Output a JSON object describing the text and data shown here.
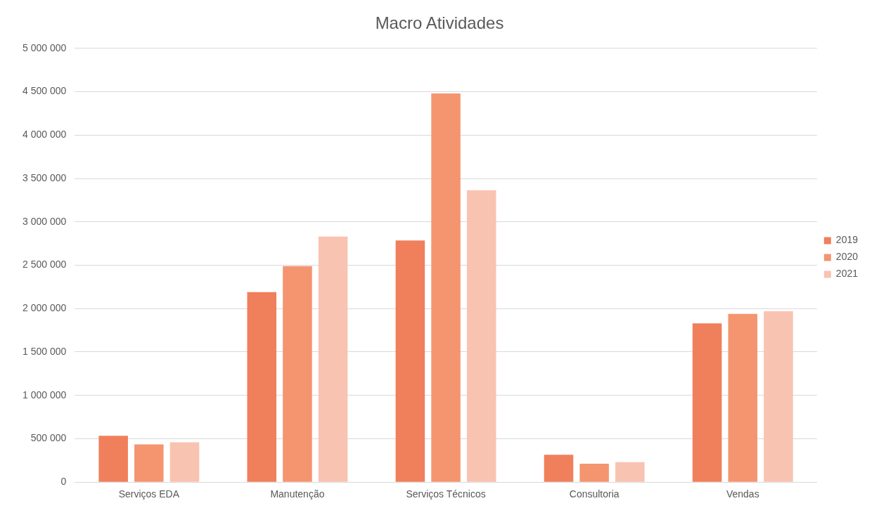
{
  "chart_data": {
    "type": "bar",
    "title": "Macro Atividades",
    "categories": [
      "Serviços EDA",
      "Manutenção",
      "Serviços Técnicos",
      "Consultoria",
      "Vendas"
    ],
    "series": [
      {
        "name": "2019",
        "color": "#f07f5b",
        "values": [
          535000,
          2190000,
          2785000,
          315000,
          1830000
        ]
      },
      {
        "name": "2020",
        "color": "#f49570",
        "values": [
          435000,
          2490000,
          4480000,
          213000,
          1940000
        ]
      },
      {
        "name": "2021",
        "color": "#f9c3b1",
        "values": [
          460000,
          2830000,
          3365000,
          230000,
          1970000
        ]
      }
    ],
    "ylim": [
      0,
      5000000
    ],
    "yticks": [
      {
        "value": 0,
        "label": "0"
      },
      {
        "value": 500000,
        "label": "500 000"
      },
      {
        "value": 1000000,
        "label": "1 000 000"
      },
      {
        "value": 1500000,
        "label": "1 500 000"
      },
      {
        "value": 2000000,
        "label": "2 000 000"
      },
      {
        "value": 2500000,
        "label": "2 500 000"
      },
      {
        "value": 3000000,
        "label": "3 000 000"
      },
      {
        "value": 3500000,
        "label": "3 500 000"
      },
      {
        "value": 4000000,
        "label": "4 000 000"
      },
      {
        "value": 4500000,
        "label": "4 500 000"
      },
      {
        "value": 5000000,
        "label": "5 000 000"
      }
    ],
    "grid": "y",
    "legend": "right"
  }
}
